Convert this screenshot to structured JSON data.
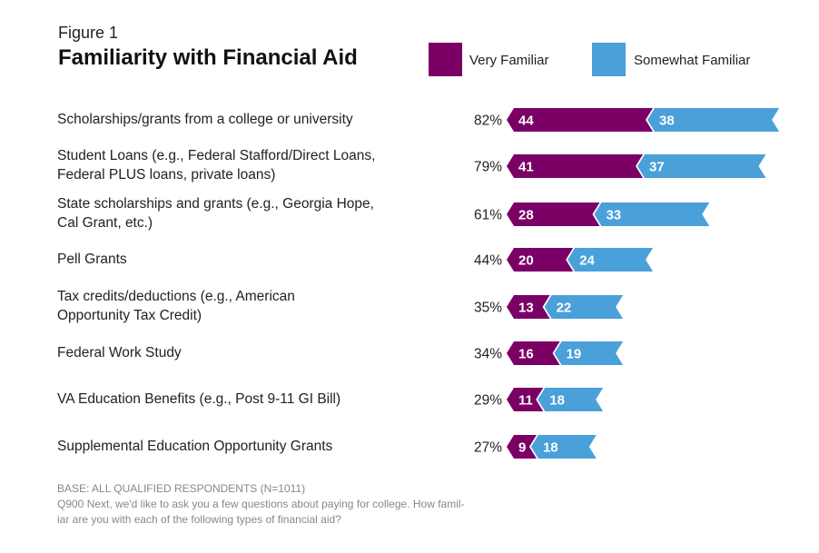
{
  "chart_data": {
    "type": "bar",
    "stacked": true,
    "orientation": "horizontal",
    "figure_label": "Figure 1",
    "title": "Familiarity with Financial Aid",
    "legend_position": "top-right",
    "categories": [
      "Scholarships/grants from a college or university",
      "Student Loans (e.g., Federal Stafford/Direct Loans,\nFederal PLUS loans, private loans)",
      "State scholarships and grants (e.g., Georgia Hope,\nCal Grant, etc.)",
      "Pell Grants",
      "Tax credits/deductions (e.g., American\nOpportunity Tax Credit)",
      "Federal Work Study",
      "VA Education Benefits (e.g., Post 9-11 GI Bill)",
      "Supplemental Education Opportunity Grants"
    ],
    "totals": [
      "82%",
      "79%",
      "61%",
      "44%",
      "35%",
      "34%",
      "29%",
      "27%"
    ],
    "series": [
      {
        "name": "Very Familiar",
        "color": "#7b0066",
        "values": [
          44,
          41,
          28,
          20,
          13,
          16,
          11,
          9
        ]
      },
      {
        "name": "Somewhat Familiar",
        "color": "#4aa0d9",
        "values": [
          38,
          37,
          33,
          24,
          22,
          19,
          18,
          18
        ]
      }
    ],
    "grid": false
  },
  "notes": {
    "base": "BASE: ALL QUALIFIED RESPONDENTS (N=1011)",
    "question": "Q900  Next, we'd like to ask you a few questions about paying for college.  How famil-\niar are you with each of the following types of financial aid?"
  }
}
